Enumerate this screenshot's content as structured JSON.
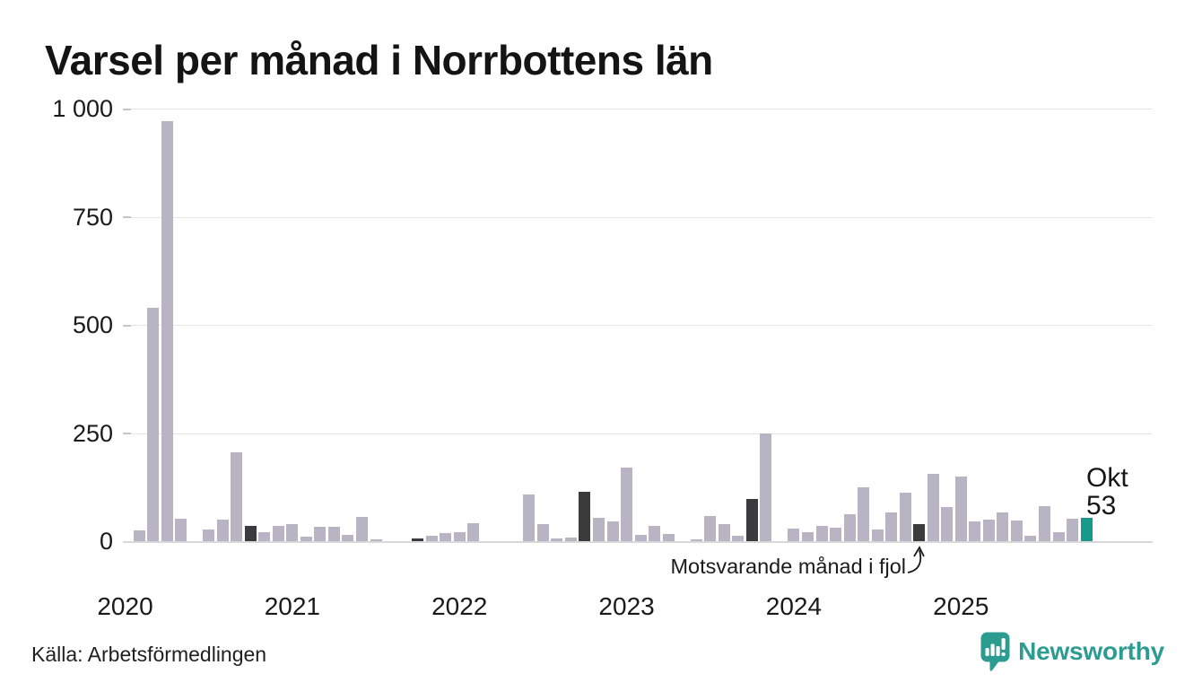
{
  "title": "Varsel per månad i Norrbottens län",
  "current_point": {
    "month_label": "Okt",
    "value_label": "53"
  },
  "annotation": {
    "text": "Motsvarande månad i fjol",
    "target_month": "2024-10"
  },
  "footer": {
    "source": "Källa: Arbetsförmedlingen",
    "logo_text": "Newsworthy"
  },
  "colors": {
    "bar": "#b8b4c3",
    "last_year_month": "#3b3b3d",
    "current": "#17998b",
    "logo": "#2d9c90",
    "grid": "#e4e4e4",
    "axis": "#d8d8d8",
    "text": "#1a1a1a"
  },
  "chart_data": {
    "type": "bar",
    "title": "Varsel per månad i Norrbottens län",
    "xlabel": "",
    "ylabel": "",
    "ylim": [
      0,
      1000
    ],
    "grid": true,
    "legend": "none",
    "yticks": [
      {
        "value": 0,
        "label": "0"
      },
      {
        "value": 250,
        "label": "250"
      },
      {
        "value": 500,
        "label": "500"
      },
      {
        "value": 750,
        "label": "750"
      },
      {
        "value": 1000,
        "label": "1 000"
      }
    ],
    "year_ticks": [
      "2020",
      "2021",
      "2022",
      "2023",
      "2024",
      "2025"
    ],
    "months": [
      "2020-01",
      "2020-02",
      "2020-03",
      "2020-04",
      "2020-05",
      "2020-06",
      "2020-07",
      "2020-08",
      "2020-09",
      "2020-10",
      "2020-11",
      "2020-12",
      "2021-01",
      "2021-02",
      "2021-03",
      "2021-04",
      "2021-05",
      "2021-06",
      "2021-07",
      "2021-08",
      "2021-09",
      "2021-10",
      "2021-11",
      "2021-12",
      "2022-01",
      "2022-02",
      "2022-03",
      "2022-04",
      "2022-05",
      "2022-06",
      "2022-07",
      "2022-08",
      "2022-09",
      "2022-10",
      "2022-11",
      "2022-12",
      "2023-01",
      "2023-02",
      "2023-03",
      "2023-04",
      "2023-05",
      "2023-06",
      "2023-07",
      "2023-08",
      "2023-09",
      "2023-10",
      "2023-11",
      "2023-12",
      "2024-01",
      "2024-02",
      "2024-03",
      "2024-04",
      "2024-05",
      "2024-06",
      "2024-07",
      "2024-08",
      "2024-09",
      "2024-10",
      "2024-11",
      "2024-12",
      "2025-01",
      "2025-02",
      "2025-03",
      "2025-04",
      "2025-05",
      "2025-06",
      "2025-07",
      "2025-08",
      "2025-09",
      "2025-10"
    ],
    "values": [
      0,
      25,
      540,
      970,
      52,
      0,
      28,
      50,
      205,
      35,
      20,
      35,
      40,
      10,
      34,
      34,
      15,
      55,
      5,
      0,
      0,
      6,
      13,
      18,
      20,
      42,
      0,
      0,
      0,
      107,
      40,
      6,
      9,
      115,
      53,
      46,
      170,
      15,
      36,
      17,
      0,
      5,
      58,
      39,
      13,
      98,
      250,
      0,
      30,
      21,
      35,
      31,
      63,
      125,
      27,
      67,
      112,
      40,
      155,
      78,
      150,
      46,
      50,
      66,
      48,
      13,
      80,
      21,
      52,
      53
    ],
    "roles": [
      "normal",
      "normal",
      "normal",
      "normal",
      "normal",
      "normal",
      "normal",
      "normal",
      "normal",
      "fjol",
      "normal",
      "normal",
      "normal",
      "normal",
      "normal",
      "normal",
      "normal",
      "normal",
      "normal",
      "normal",
      "normal",
      "fjol",
      "normal",
      "normal",
      "normal",
      "normal",
      "normal",
      "normal",
      "normal",
      "normal",
      "normal",
      "normal",
      "normal",
      "fjol",
      "normal",
      "normal",
      "normal",
      "normal",
      "normal",
      "normal",
      "normal",
      "normal",
      "normal",
      "normal",
      "normal",
      "fjol",
      "normal",
      "normal",
      "normal",
      "normal",
      "normal",
      "normal",
      "normal",
      "normal",
      "normal",
      "normal",
      "normal",
      "fjol",
      "normal",
      "normal",
      "normal",
      "normal",
      "normal",
      "normal",
      "normal",
      "normal",
      "normal",
      "normal",
      "normal",
      "current"
    ]
  }
}
